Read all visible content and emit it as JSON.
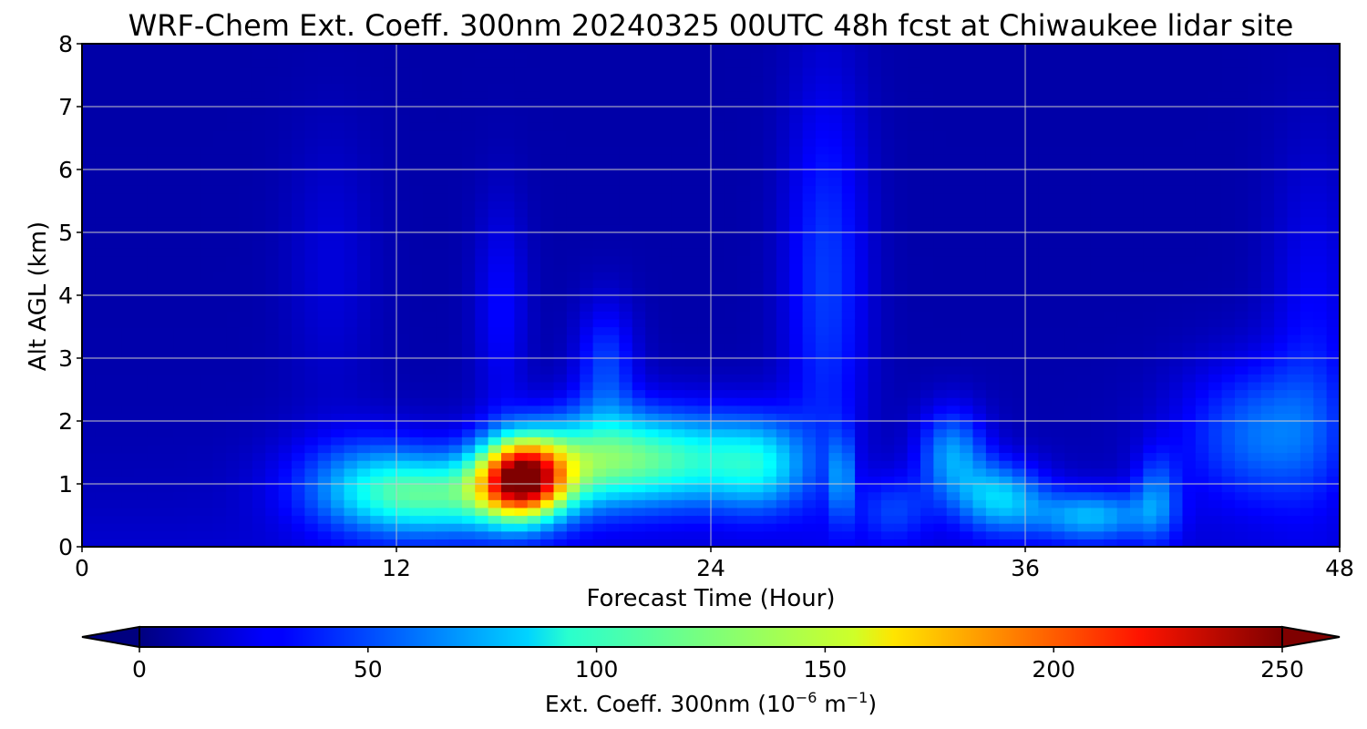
{
  "chart_data": {
    "type": "heatmap",
    "title": "WRF-Chem Ext. Coeff. 300nm  20240325 00UTC 48h fcst at Chiwaukee lidar site",
    "xlabel": "Forecast Time (Hour)",
    "ylabel": "Alt AGL (km)",
    "x_ticks": [
      "0",
      "12",
      "24",
      "36",
      "48"
    ],
    "y_ticks": [
      "0",
      "1",
      "2",
      "3",
      "4",
      "5",
      "6",
      "7",
      "8"
    ],
    "xlim": [
      0,
      48
    ],
    "ylim": [
      0,
      8
    ],
    "grid": true,
    "colormap": "jet",
    "colorbar": {
      "label_main": "Ext. Coeff. 300nm  (10",
      "label_exp1": "−6",
      "label_mid": " m",
      "label_exp2": "−1",
      "label_end": ")",
      "ticks": [
        "0",
        "50",
        "100",
        "150",
        "200",
        "250"
      ],
      "range": [
        0,
        250
      ],
      "extend": "both",
      "orientation": "horizontal"
    },
    "features": [
      {
        "t": 16.8,
        "z": 1.1,
        "st": 1.2,
        "sz": 0.45,
        "a": 200
      },
      {
        "t": 19.8,
        "z": 1.4,
        "st": 2.2,
        "sz": 0.55,
        "a": 95
      },
      {
        "t": 13.5,
        "z": 0.8,
        "st": 2.6,
        "sz": 0.45,
        "a": 80
      },
      {
        "t": 11.0,
        "z": 1.1,
        "st": 2.2,
        "sz": 0.55,
        "a": 40
      },
      {
        "t": 20.0,
        "z": 2.9,
        "st": 0.8,
        "sz": 0.7,
        "a": 35
      },
      {
        "t": 23.5,
        "z": 1.4,
        "st": 2.0,
        "sz": 0.55,
        "a": 60
      },
      {
        "t": 26.0,
        "z": 1.3,
        "st": 1.3,
        "sz": 0.55,
        "a": 55
      },
      {
        "t": 28.4,
        "z": 4.2,
        "st": 1.1,
        "sz": 2.3,
        "a": 35
      },
      {
        "t": 29.0,
        "z": 1.1,
        "st": 0.3,
        "sz": 0.5,
        "a": 45
      },
      {
        "t": 16.0,
        "z": 3.8,
        "st": 0.7,
        "sz": 1.2,
        "a": 22
      },
      {
        "t": 33.2,
        "z": 1.5,
        "st": 0.9,
        "sz": 0.5,
        "a": 55
      },
      {
        "t": 35.0,
        "z": 0.8,
        "st": 1.2,
        "sz": 0.4,
        "a": 65
      },
      {
        "t": 38.5,
        "z": 0.5,
        "st": 1.6,
        "sz": 0.3,
        "a": 60
      },
      {
        "t": 41.0,
        "z": 0.8,
        "st": 0.6,
        "sz": 0.5,
        "a": 40
      },
      {
        "t": 45.0,
        "z": 1.8,
        "st": 2.2,
        "sz": 0.8,
        "a": 45
      },
      {
        "t": 47.0,
        "z": 3.5,
        "st": 1.2,
        "sz": 2.0,
        "a": 20
      },
      {
        "t": 9.5,
        "z": 4.5,
        "st": 1.2,
        "sz": 1.5,
        "a": 12
      },
      {
        "t": 31.0,
        "z": 0.6,
        "st": 1.0,
        "sz": 0.4,
        "a": 30
      }
    ]
  }
}
